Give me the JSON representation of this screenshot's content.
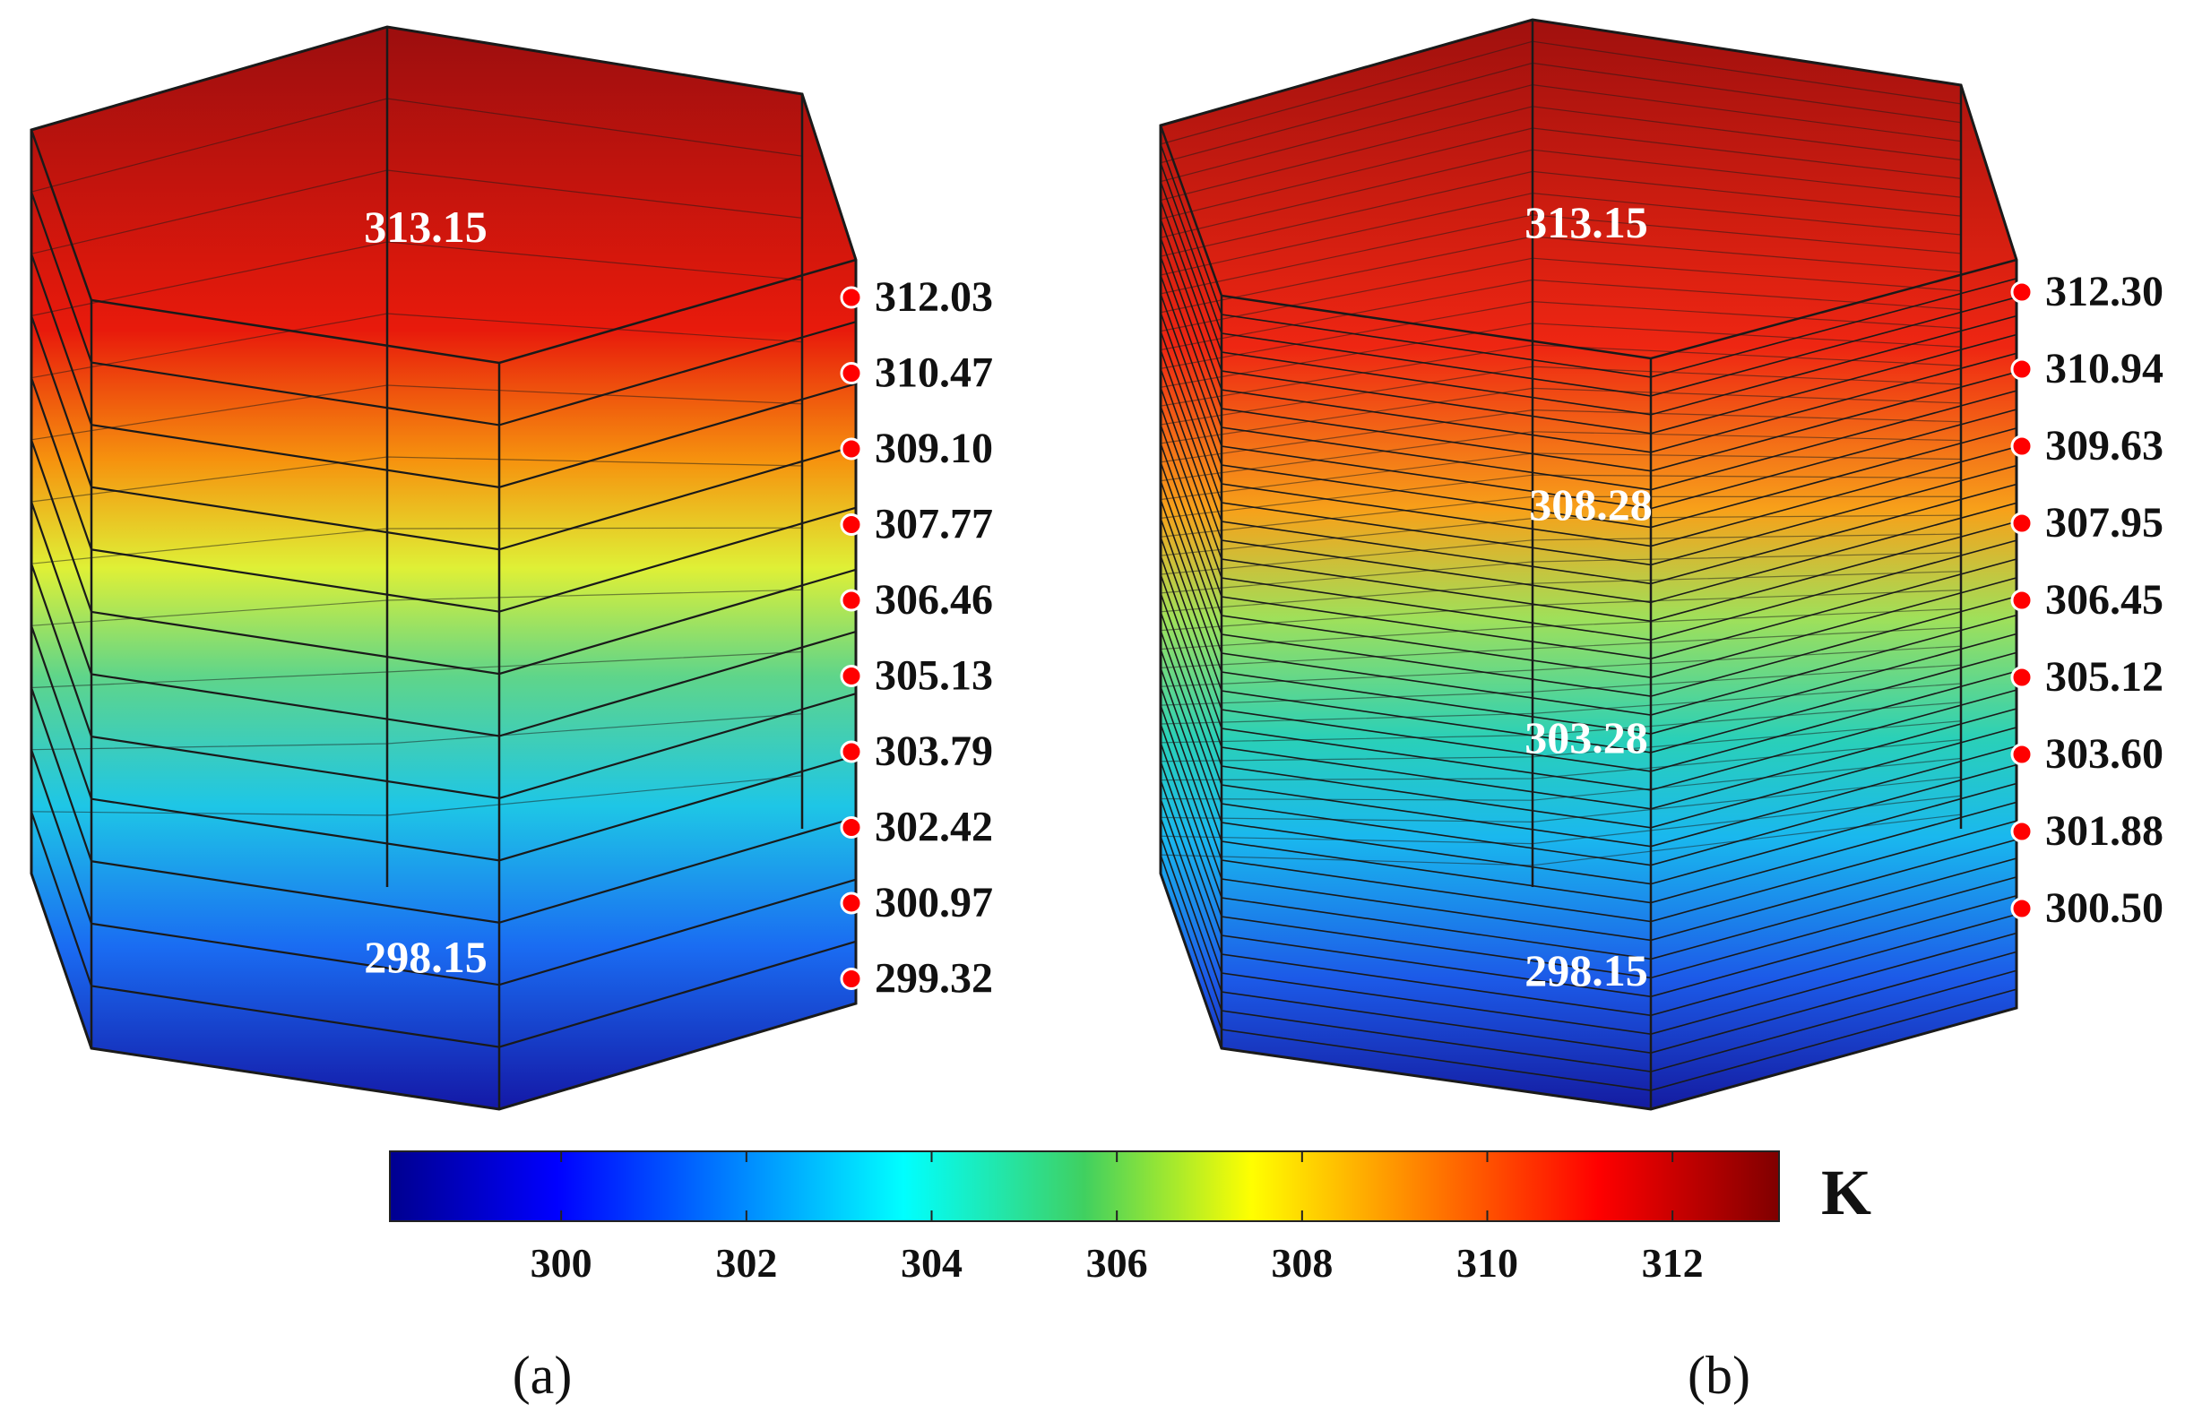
{
  "panels": [
    {
      "id": "a",
      "caption": "(a)",
      "top_label": "313.15",
      "bottom_label": "298.15",
      "mid_labels": [],
      "probes": [
        "312.03",
        "310.47",
        "309.10",
        "307.77",
        "306.46",
        "305.13",
        "303.79",
        "302.42",
        "300.97",
        "299.32"
      ],
      "layer_count": 12
    },
    {
      "id": "b",
      "caption": "(b)",
      "top_label": "313.15",
      "bottom_label": "298.15",
      "mid_labels": [
        "308.28",
        "303.28"
      ],
      "probes": [
        "312.30",
        "310.94",
        "309.63",
        "307.95",
        "306.45",
        "305.12",
        "303.60",
        "301.88",
        "300.50"
      ],
      "layer_count": 40
    }
  ],
  "colorbar": {
    "unit": "K",
    "min": 298.15,
    "max": 313.15,
    "ticks": [
      "300",
      "302",
      "304",
      "306",
      "308",
      "310",
      "312"
    ],
    "colormap": "jet"
  },
  "colors": {
    "probe_marker": "#ff0000",
    "label_light": "#ffffff",
    "label_dark": "#111111",
    "edge": "#1a1a1a"
  }
}
